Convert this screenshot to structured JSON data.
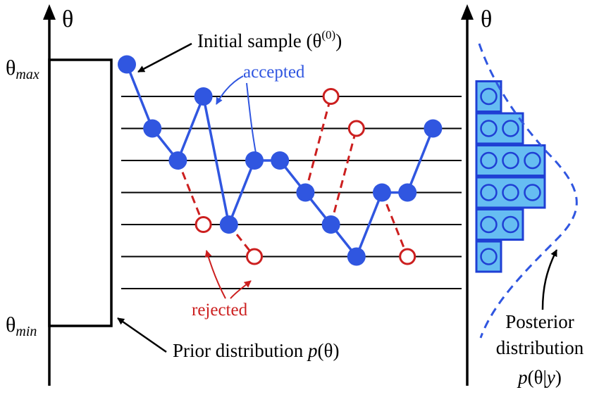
{
  "axes": {
    "left_label": "θ",
    "right_label": "θ",
    "theta_max": {
      "base": "θ",
      "sub": "max"
    },
    "theta_min": {
      "base": "θ",
      "sub": "min"
    }
  },
  "annotations": {
    "initial_sample": {
      "text": "Initial sample (θ",
      "sup": "(0)",
      "close": ")"
    },
    "accepted": "accepted",
    "rejected": "rejected",
    "prior": {
      "text": "Prior distribution ",
      "func": "p",
      "arg": "(θ)"
    },
    "posterior": {
      "line1": "Posterior",
      "line2": "distribution",
      "func": "p",
      "arg_open": "(θ|",
      "var": "y",
      "arg_close": ")"
    }
  },
  "colors": {
    "accepted": "#3056e0",
    "rejected": "#cc1f1f",
    "histogram_fill": "#66bdf2",
    "histogram_stroke": "#1f3fd4",
    "posterior_curve": "#3056e0",
    "axis": "#000000"
  },
  "chain": {
    "levels": 7,
    "accepted_levels": [
      8,
      6,
      5,
      7,
      3,
      5,
      5,
      4,
      3,
      2,
      4,
      4,
      6
    ],
    "rejected_proposals": [
      {
        "from_step": 2,
        "level": 3
      },
      {
        "from_step": 4,
        "level": 2
      },
      {
        "from_step": 7,
        "level": 7
      },
      {
        "from_step": 8,
        "level": 6
      },
      {
        "from_step": 10,
        "level": 2
      }
    ]
  },
  "histogram": {
    "counts_by_level": [
      {
        "level": 7,
        "count": 1
      },
      {
        "level": 6,
        "count": 2
      },
      {
        "level": 5,
        "count": 3
      },
      {
        "level": 4,
        "count": 3
      },
      {
        "level": 3,
        "count": 2
      },
      {
        "level": 2,
        "count": 1
      }
    ]
  }
}
